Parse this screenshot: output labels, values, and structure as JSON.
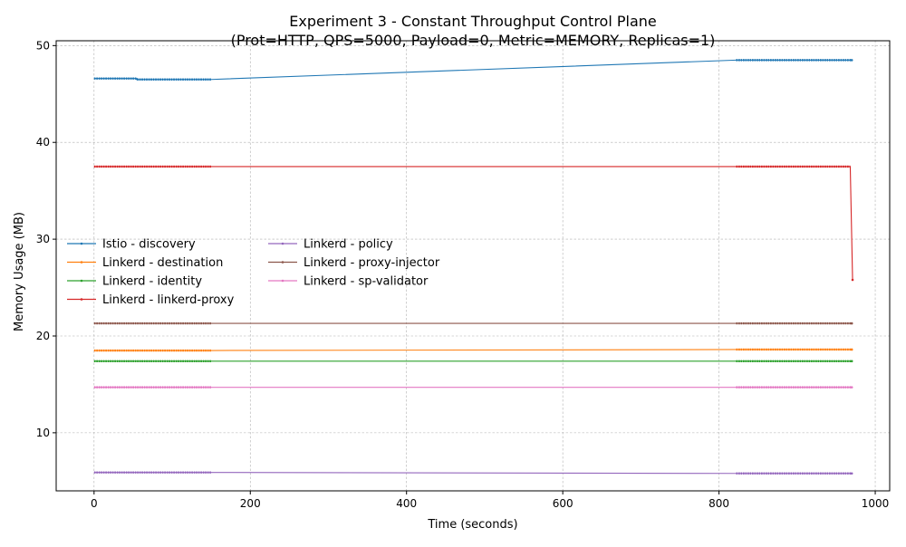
{
  "chart_data": {
    "type": "line",
    "title": "Experiment 3 - Constant Throughput Control Plane",
    "subtitle": "(Prot=HTTP, QPS=5000, Payload=0, Metric=MEMORY, Replicas=1)",
    "xlabel": "Time (seconds)",
    "ylabel": "Memory Usage (MB)",
    "xlim": [
      -48.5,
      1018.5
    ],
    "ylim": [
      4.0,
      50.5
    ],
    "xticks": [
      0,
      200,
      400,
      600,
      800,
      1000
    ],
    "yticks": [
      10,
      20,
      30,
      40,
      50
    ],
    "grid": true,
    "legend_position": "center-left",
    "series": [
      {
        "name": "Istio - discovery",
        "color": "#1f77b4",
        "points": [
          [
            0,
            46.6
          ],
          [
            54,
            46.6
          ],
          [
            55,
            46.5
          ],
          [
            150,
            46.5
          ],
          [
            822,
            48.5
          ],
          [
            970,
            48.5
          ]
        ]
      },
      {
        "name": "Linkerd - destination",
        "color": "#ff7f0e",
        "points": [
          [
            0,
            18.5
          ],
          [
            150,
            18.5
          ],
          [
            822,
            18.6
          ],
          [
            970,
            18.6
          ]
        ]
      },
      {
        "name": "Linkerd - identity",
        "color": "#2ca02c",
        "points": [
          [
            0,
            17.4
          ],
          [
            150,
            17.4
          ],
          [
            822,
            17.4
          ],
          [
            970,
            17.4
          ]
        ]
      },
      {
        "name": "Linkerd - linkerd-proxy",
        "color": "#d62728",
        "points": [
          [
            0,
            37.5
          ],
          [
            150,
            37.5
          ],
          [
            822,
            37.5
          ],
          [
            968,
            37.5
          ],
          [
            971,
            25.8
          ]
        ]
      },
      {
        "name": "Linkerd - policy",
        "color": "#9467bd",
        "points": [
          [
            0,
            5.9
          ],
          [
            150,
            5.9
          ],
          [
            822,
            5.8
          ],
          [
            970,
            5.8
          ]
        ]
      },
      {
        "name": "Linkerd - proxy-injector",
        "color": "#8c564b",
        "points": [
          [
            0,
            21.3
          ],
          [
            150,
            21.3
          ],
          [
            822,
            21.3
          ],
          [
            970,
            21.3
          ]
        ]
      },
      {
        "name": "Linkerd - sp-validator",
        "color": "#e377c2",
        "points": [
          [
            0,
            14.7
          ],
          [
            150,
            14.7
          ],
          [
            822,
            14.7
          ],
          [
            970,
            14.7
          ]
        ]
      }
    ]
  }
}
